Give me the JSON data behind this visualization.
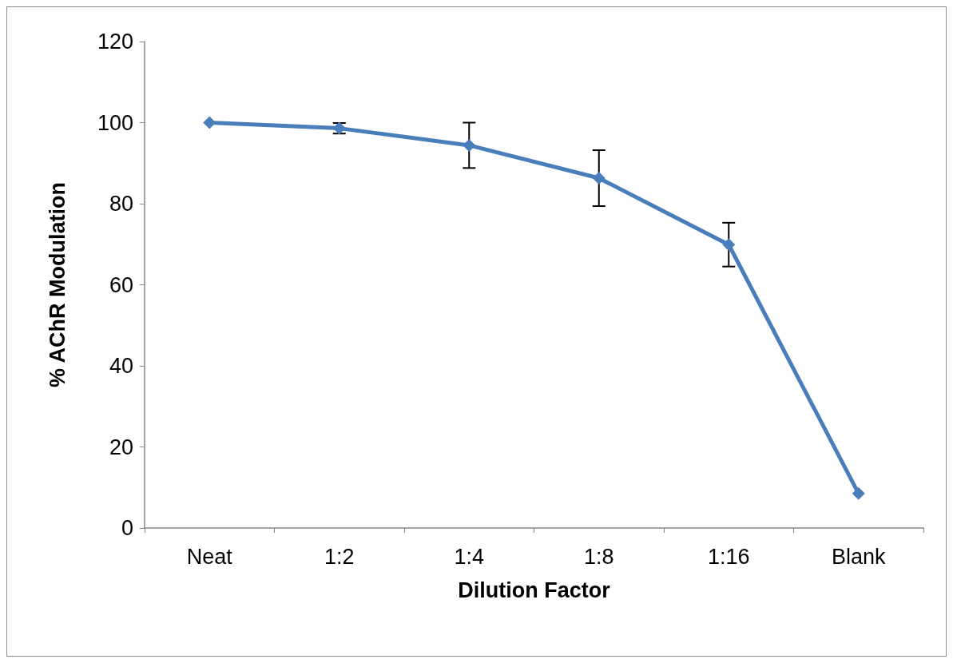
{
  "chart_data": {
    "type": "line",
    "xlabel": "Dilution Factor",
    "ylabel": "% AChR Modulation",
    "categories": [
      "Neat",
      "1:2",
      "1:4",
      "1:8",
      "1:16",
      "Blank"
    ],
    "series": [
      {
        "color": "#4a7ebb",
        "values": [
          100,
          98.6,
          94.4,
          86.3,
          69.9,
          8.5
        ],
        "errors": [
          null,
          1.3,
          5.6,
          6.9,
          5.4,
          null
        ]
      }
    ],
    "ylim": [
      0,
      120
    ],
    "yticks": [
      0,
      20,
      40,
      60,
      80,
      100,
      120
    ],
    "grid": false,
    "marker": "diamond",
    "line_style": "solid"
  }
}
